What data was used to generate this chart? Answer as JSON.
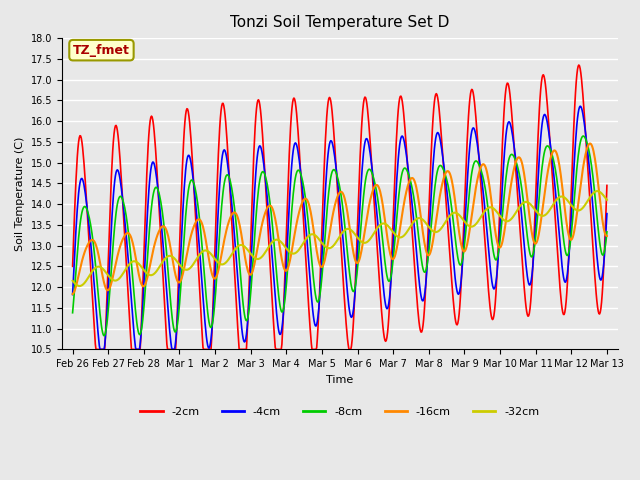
{
  "title": "Tonzi Soil Temperature Set D",
  "xlabel": "Time",
  "ylabel": "Soil Temperature (C)",
  "ylim": [
    10.5,
    18.0
  ],
  "yticks": [
    10.5,
    11.0,
    11.5,
    12.0,
    12.5,
    13.0,
    13.5,
    14.0,
    14.5,
    15.0,
    15.5,
    16.0,
    16.5,
    17.0,
    17.5,
    18.0
  ],
  "xtick_labels": [
    "Feb 26",
    "Feb 27",
    "Feb 28",
    "Mar 1",
    "Mar 2",
    "Mar 3",
    "Mar 4",
    "Mar 5",
    "Mar 6",
    "Mar 7",
    "Mar 8",
    "Mar 9",
    "Mar 10",
    "Mar 11",
    "Mar 12",
    "Mar 13"
  ],
  "series_colors": [
    "#ff0000",
    "#0000ff",
    "#00cc00",
    "#ff8800",
    "#cccc00"
  ],
  "series_labels": [
    "-2cm",
    "-4cm",
    "-8cm",
    "-16cm",
    "-32cm"
  ],
  "background_color": "#e8e8e8",
  "plot_bg_color": "#e8e8e8",
  "grid_color": "#ffffff",
  "legend_box_color": "#ffffcc",
  "legend_box_edge": "#999900",
  "annotation_text": "TZ_fmet",
  "annotation_color": "#aa0000",
  "n_points": 800
}
